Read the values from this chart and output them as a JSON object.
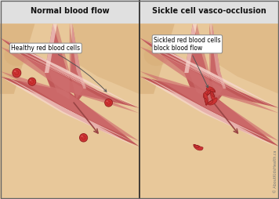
{
  "title_left": "Normal blood flow",
  "title_right": "Sickle cell vasco-occlusion",
  "label_left": "Healthy red blood cells",
  "label_right": "Sickled red blood cells\nblock blood flow",
  "skin_lt": "#e8c89a",
  "skin_md": "#d4a870",
  "skin_dk": "#c49060",
  "vessel_dk": "#c05858",
  "vessel_md": "#d07070",
  "vessel_lt": "#e8a090",
  "vessel_wall": "#f0c0b8",
  "vessel_shine": "#f8d8d0",
  "rbc_fill": "#cc3333",
  "rbc_edge": "#992222",
  "rbc_inner": "#bb2222",
  "arrow_col": "#994444",
  "header_bg": "#e0e0e0",
  "label_bg": "#ffffff",
  "label_edge": "#888888",
  "divider": "#222222",
  "watermark": "© AboutKidsHealth.ca",
  "title_fs": 7,
  "label_fs": 5.5
}
